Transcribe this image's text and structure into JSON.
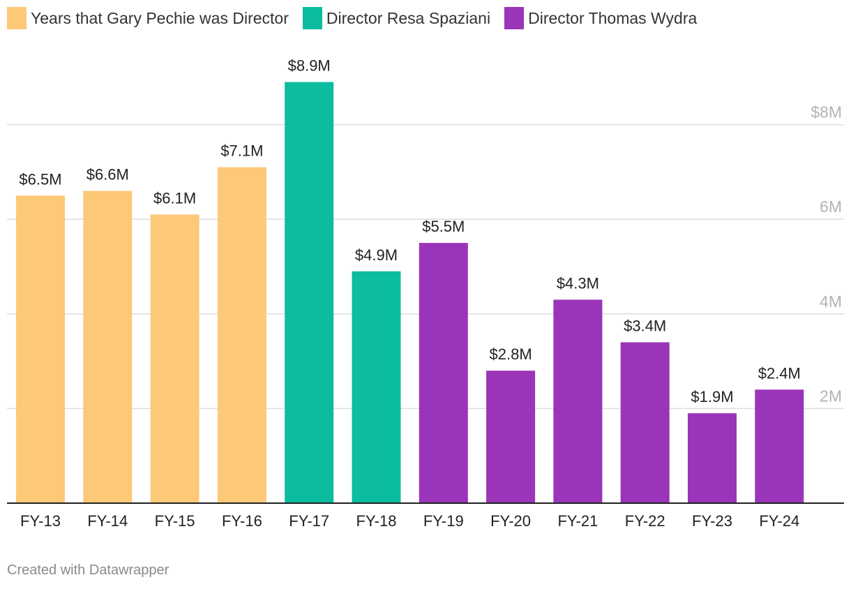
{
  "legend": [
    {
      "label": "Years that Gary Pechie was Director",
      "color": "#fdc978"
    },
    {
      "label": "Director Resa Spaziani",
      "color": "#0bbc9f"
    },
    {
      "label": "Director Thomas Wydra",
      "color": "#9a34b8"
    }
  ],
  "credit": "Created with Datawrapper",
  "chart_data": {
    "type": "bar",
    "categories": [
      "FY-13",
      "FY-14",
      "FY-15",
      "FY-16",
      "FY-17",
      "FY-18",
      "FY-19",
      "FY-20",
      "FY-21",
      "FY-22",
      "FY-23",
      "FY-24"
    ],
    "values": [
      6.5,
      6.6,
      6.1,
      7.1,
      8.9,
      4.9,
      5.5,
      2.8,
      4.3,
      3.4,
      1.9,
      2.4
    ],
    "value_labels": [
      "$6.5M",
      "$6.6M",
      "$6.1M",
      "$7.1M",
      "$8.9M",
      "$4.9M",
      "$5.5M",
      "$2.8M",
      "$4.3M",
      "$3.4M",
      "$1.9M",
      "$2.4M"
    ],
    "group": [
      0,
      0,
      0,
      0,
      1,
      1,
      2,
      2,
      2,
      2,
      2,
      2
    ],
    "unit": "millions of dollars",
    "yticks": [
      2,
      4,
      6,
      8
    ],
    "ytick_labels": [
      "2M",
      "4M",
      "6M",
      "$8M"
    ],
    "ylim": [
      0,
      9.1
    ],
    "y_axis_position": "right",
    "grid": true,
    "legend_position": "top-left",
    "colors": {
      "grid": "#dddddd",
      "baseline": "#222222",
      "tick_label": "#b3b3b3"
    }
  }
}
